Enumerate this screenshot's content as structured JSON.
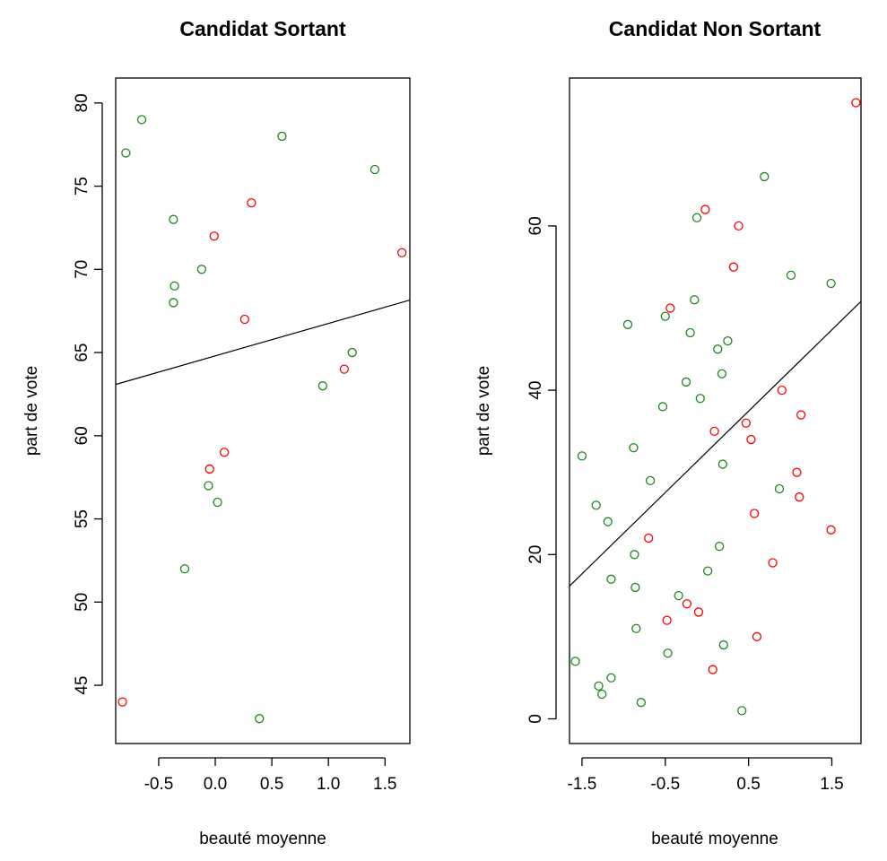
{
  "chart_data": [
    {
      "type": "scatter",
      "title": "Candidat Sortant",
      "xlabel": "beauté moyenne",
      "ylabel": "part de vote",
      "xlim": [
        -0.88,
        1.72
      ],
      "ylim": [
        41.5,
        81.5
      ],
      "x_ticks": [
        -0.5,
        0.0,
        0.5,
        1.0,
        1.5
      ],
      "x_tick_labels": [
        "-0.5",
        "0.0",
        "0.5",
        "1.0",
        "1.5"
      ],
      "y_ticks": [
        45,
        50,
        55,
        60,
        65,
        70,
        75,
        80
      ],
      "y_tick_labels": [
        "45",
        "50",
        "55",
        "60",
        "65",
        "70",
        "75",
        "80"
      ],
      "colors": {
        "green": "#1a8a1a",
        "red": "#ff0000"
      },
      "fit_line": {
        "intercept": 64.8,
        "slope": 1.95
      },
      "points": [
        {
          "x": -0.79,
          "y": 77,
          "color": "green"
        },
        {
          "x": -0.65,
          "y": 79,
          "color": "green"
        },
        {
          "x": -0.37,
          "y": 73,
          "color": "green"
        },
        {
          "x": -0.36,
          "y": 69,
          "color": "green"
        },
        {
          "x": -0.37,
          "y": 68,
          "color": "green"
        },
        {
          "x": -0.12,
          "y": 70,
          "color": "green"
        },
        {
          "x": -0.01,
          "y": 72,
          "color": "red"
        },
        {
          "x": 0.32,
          "y": 74,
          "color": "red"
        },
        {
          "x": 0.59,
          "y": 78,
          "color": "green"
        },
        {
          "x": 0.26,
          "y": 67,
          "color": "red"
        },
        {
          "x": 1.41,
          "y": 76,
          "color": "green"
        },
        {
          "x": 1.65,
          "y": 71,
          "color": "red"
        },
        {
          "x": 1.21,
          "y": 65,
          "color": "green"
        },
        {
          "x": 1.14,
          "y": 64,
          "color": "red"
        },
        {
          "x": 0.95,
          "y": 63,
          "color": "green"
        },
        {
          "x": 0.08,
          "y": 59,
          "color": "red"
        },
        {
          "x": -0.05,
          "y": 58,
          "color": "red"
        },
        {
          "x": -0.06,
          "y": 57,
          "color": "green"
        },
        {
          "x": 0.02,
          "y": 56,
          "color": "green"
        },
        {
          "x": -0.27,
          "y": 52,
          "color": "green"
        },
        {
          "x": -0.82,
          "y": 44,
          "color": "red"
        },
        {
          "x": 0.39,
          "y": 43,
          "color": "green"
        }
      ]
    },
    {
      "type": "scatter",
      "title": "Candidat Non Sortant",
      "xlabel": "beauté moyenne",
      "ylabel": "part de vote",
      "xlim": [
        -1.65,
        1.85
      ],
      "ylim": [
        -3,
        78
      ],
      "x_ticks": [
        -1.5,
        -0.5,
        0.5,
        1.5
      ],
      "x_tick_labels": [
        "-1.5",
        "-0.5",
        "0.5",
        "1.5"
      ],
      "y_ticks": [
        0,
        20,
        40,
        60
      ],
      "y_tick_labels": [
        "0",
        "20",
        "40",
        "60"
      ],
      "colors": {
        "green": "#1a8a1a",
        "red": "#ff0000"
      },
      "fit_line": {
        "intercept": 32.5,
        "slope": 9.9
      },
      "points": [
        {
          "x": 1.79,
          "y": 75,
          "color": "red"
        },
        {
          "x": 0.69,
          "y": 66,
          "color": "green"
        },
        {
          "x": -0.02,
          "y": 62,
          "color": "red"
        },
        {
          "x": -0.12,
          "y": 61,
          "color": "green"
        },
        {
          "x": 0.38,
          "y": 60,
          "color": "red"
        },
        {
          "x": 0.32,
          "y": 55,
          "color": "red"
        },
        {
          "x": 1.01,
          "y": 54,
          "color": "green"
        },
        {
          "x": 1.49,
          "y": 53,
          "color": "green"
        },
        {
          "x": -0.15,
          "y": 51,
          "color": "green"
        },
        {
          "x": -0.44,
          "y": 50,
          "color": "red"
        },
        {
          "x": -0.5,
          "y": 49,
          "color": "green"
        },
        {
          "x": -0.95,
          "y": 48,
          "color": "green"
        },
        {
          "x": -0.2,
          "y": 47,
          "color": "green"
        },
        {
          "x": 0.25,
          "y": 46,
          "color": "green"
        },
        {
          "x": 0.13,
          "y": 45,
          "color": "green"
        },
        {
          "x": 0.18,
          "y": 42,
          "color": "green"
        },
        {
          "x": -0.25,
          "y": 41,
          "color": "green"
        },
        {
          "x": 0.9,
          "y": 40,
          "color": "red"
        },
        {
          "x": -0.08,
          "y": 39,
          "color": "green"
        },
        {
          "x": -0.53,
          "y": 38,
          "color": "green"
        },
        {
          "x": 1.13,
          "y": 37,
          "color": "red"
        },
        {
          "x": 0.47,
          "y": 36,
          "color": "red"
        },
        {
          "x": 0.09,
          "y": 35,
          "color": "red"
        },
        {
          "x": 0.53,
          "y": 34,
          "color": "red"
        },
        {
          "x": -0.88,
          "y": 33,
          "color": "green"
        },
        {
          "x": -1.5,
          "y": 32,
          "color": "green"
        },
        {
          "x": 0.19,
          "y": 31,
          "color": "green"
        },
        {
          "x": 1.08,
          "y": 30,
          "color": "red"
        },
        {
          "x": -0.68,
          "y": 29,
          "color": "green"
        },
        {
          "x": 0.87,
          "y": 28,
          "color": "green"
        },
        {
          "x": 1.11,
          "y": 27,
          "color": "red"
        },
        {
          "x": -1.33,
          "y": 26,
          "color": "green"
        },
        {
          "x": 0.57,
          "y": 25,
          "color": "red"
        },
        {
          "x": -1.19,
          "y": 24,
          "color": "green"
        },
        {
          "x": 1.49,
          "y": 23,
          "color": "red"
        },
        {
          "x": -0.7,
          "y": 22,
          "color": "red"
        },
        {
          "x": 0.15,
          "y": 21,
          "color": "green"
        },
        {
          "x": -0.87,
          "y": 20,
          "color": "green"
        },
        {
          "x": 0.79,
          "y": 19,
          "color": "red"
        },
        {
          "x": 0.01,
          "y": 18,
          "color": "green"
        },
        {
          "x": -1.15,
          "y": 17,
          "color": "green"
        },
        {
          "x": -0.86,
          "y": 16,
          "color": "green"
        },
        {
          "x": -0.34,
          "y": 15,
          "color": "green"
        },
        {
          "x": -0.24,
          "y": 14,
          "color": "red"
        },
        {
          "x": -0.1,
          "y": 13,
          "color": "red"
        },
        {
          "x": -0.48,
          "y": 12,
          "color": "red"
        },
        {
          "x": -0.85,
          "y": 11,
          "color": "green"
        },
        {
          "x": 0.6,
          "y": 10,
          "color": "red"
        },
        {
          "x": 0.2,
          "y": 9,
          "color": "green"
        },
        {
          "x": -0.47,
          "y": 8,
          "color": "green"
        },
        {
          "x": -1.58,
          "y": 7,
          "color": "green"
        },
        {
          "x": 0.07,
          "y": 6,
          "color": "red"
        },
        {
          "x": -1.15,
          "y": 5,
          "color": "green"
        },
        {
          "x": -1.3,
          "y": 4,
          "color": "green"
        },
        {
          "x": -1.26,
          "y": 3,
          "color": "green"
        },
        {
          "x": -0.79,
          "y": 2,
          "color": "green"
        },
        {
          "x": 0.42,
          "y": 1,
          "color": "green"
        }
      ]
    }
  ]
}
